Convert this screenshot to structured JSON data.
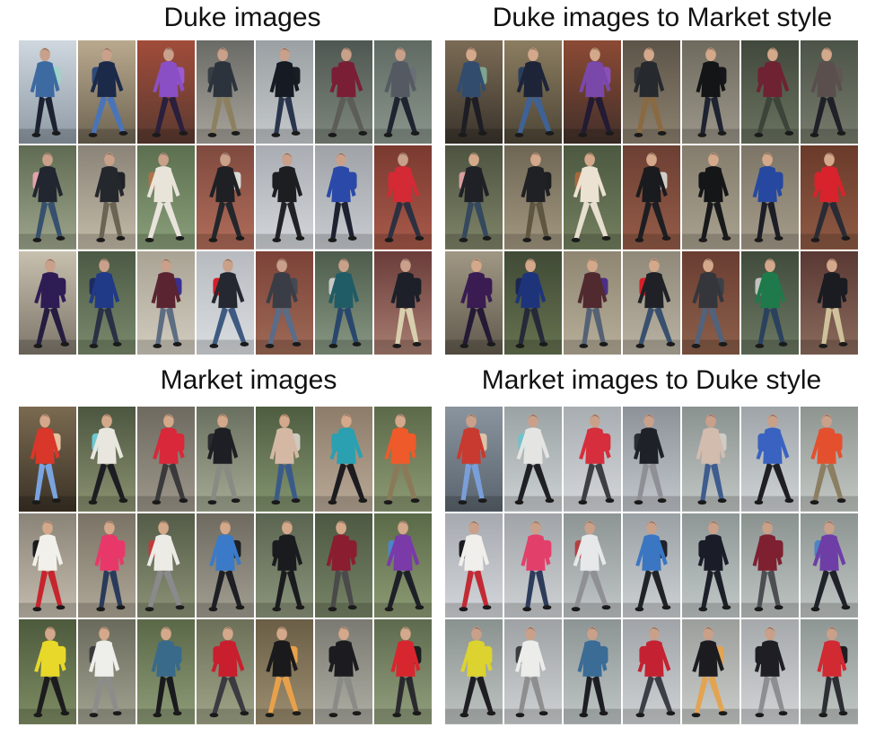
{
  "panels": [
    {
      "title": "Duke images",
      "tone": "duke",
      "rows": [
        [
          {
            "top": "#3d6aa0",
            "bottom": "#1d2233",
            "bag": "#9fd3c7",
            "bg1": "#cfd7df",
            "bg2": "#8e9aa5"
          },
          {
            "top": "#1c2a4a",
            "bottom": "#4a74b8",
            "bag": "#2d4b7a",
            "bg1": "#b9a98e",
            "bg2": "#6e6452"
          },
          {
            "top": "#8b4fc5",
            "bottom": "#2a1f3c",
            "bag": "#9a5ad2",
            "bg1": "#a24c3a",
            "bg2": "#5a3a30"
          },
          {
            "top": "#2c333c",
            "bottom": "#8c8060",
            "bag": "#3a3f46",
            "bg1": "#6a6a66",
            "bg2": "#a7a49b"
          },
          {
            "top": "#161a22",
            "bottom": "#29354d",
            "bag": "#1a1d24",
            "bg1": "#9aa0a3",
            "bg2": "#c5c9cb"
          },
          {
            "top": "#7a1e36",
            "bottom": "#5b5d56",
            "bag": "#7a1e36",
            "bg1": "#4e5751",
            "bg2": "#7f887d"
          },
          {
            "top": "#555a62",
            "bottom": "#1f2431",
            "bag": "#6a6f75",
            "bg1": "#5f6a62",
            "bg2": "#8a958c"
          }
        ],
        [
          {
            "top": "#222630",
            "bottom": "#36506e",
            "bag": "#e3a2ad",
            "bg1": "#5f6b52",
            "bg2": "#9ea68d"
          },
          {
            "top": "#24272c",
            "bottom": "#6a6454",
            "bag": "#202326",
            "bg1": "#8a8377",
            "bg2": "#c4bba8"
          },
          {
            "top": "#e9e4da",
            "bottom": "#e8e4dc",
            "bag": "#b0744a",
            "bg1": "#5c6f50",
            "bg2": "#8a9f7a"
          },
          {
            "top": "#1e2024",
            "bottom": "#23262b",
            "bag": "#d9d9d4",
            "bg1": "#7f4a3f",
            "bg2": "#b16d5a"
          },
          {
            "top": "#1c1e22",
            "bottom": "#202226",
            "bag": "#1c1e22",
            "bg1": "#a9adb3",
            "bg2": "#d3d6da"
          },
          {
            "top": "#2a49a8",
            "bottom": "#1d2130",
            "bag": "#2a49a8",
            "bg1": "#9fa3a8",
            "bg2": "#c8ccd1"
          },
          {
            "top": "#d42a35",
            "bottom": "#2d3040",
            "bag": "#d42a35",
            "bg1": "#7a3a30",
            "bg2": "#a85a4a"
          }
        ],
        [
          {
            "top": "#2e1d55",
            "bottom": "#251c40",
            "bag": "#2e1d55",
            "bg1": "#c7c0ae",
            "bg2": "#7d766a"
          },
          {
            "top": "#213a87",
            "bottom": "#2a3146",
            "bag": "#1c2c60",
            "bg1": "#4c5a45",
            "bg2": "#7a8a6c"
          },
          {
            "top": "#5a2430",
            "bottom": "#5d6d82",
            "bag": "#3a2f8f",
            "bg1": "#a9a394",
            "bg2": "#d1ccbf"
          },
          {
            "top": "#252830",
            "bottom": "#3e5a80",
            "bag": "#d21f2b",
            "bg1": "#b7bbc0",
            "bg2": "#dadde0"
          },
          {
            "top": "#3a3d45",
            "bottom": "#5a6c88",
            "bag": "#454a52",
            "bg1": "#7c4238",
            "bg2": "#9e6a56"
          },
          {
            "top": "#205c66",
            "bottom": "#29476d",
            "bag": "#c7c9c8",
            "bg1": "#4d5c4c",
            "bg2": "#889883"
          },
          {
            "top": "#1d2028",
            "bottom": "#d8cfae",
            "bag": "#1d2028",
            "bg1": "#6b3c3a",
            "bg2": "#a77d70"
          }
        ]
      ]
    },
    {
      "title": "Duke images to Market style",
      "tone": "market",
      "rows": [
        [
          {
            "top": "#324c6e",
            "bottom": "#1d1d24",
            "bag": "#7ea48f",
            "bg1": "#7b6b55",
            "bg2": "#3a342c"
          },
          {
            "top": "#1d2438",
            "bottom": "#3f6296",
            "bag": "#2a3f5e",
            "bg1": "#8b7d60",
            "bg2": "#4d4536"
          },
          {
            "top": "#7a48a9",
            "bottom": "#231a33",
            "bag": "#8a50ba",
            "bg1": "#8c4a34",
            "bg2": "#42302a"
          },
          {
            "top": "#26292e",
            "bottom": "#8a6a42",
            "bag": "#303338",
            "bg1": "#5c5448",
            "bg2": "#8d8270"
          },
          {
            "top": "#141517",
            "bottom": "#1e2330",
            "bag": "#16171a",
            "bg1": "#6e6a5e",
            "bg2": "#9c978a"
          },
          {
            "top": "#6e2232",
            "bottom": "#3c4439",
            "bag": "#6e2232",
            "bg1": "#41483c",
            "bg2": "#6a7360"
          },
          {
            "top": "#5a4f4d",
            "bottom": "#1f2028",
            "bag": "#5e5652",
            "bg1": "#4c5348",
            "bg2": "#767c6c"
          }
        ],
        [
          {
            "top": "#1f2126",
            "bottom": "#34485e",
            "bag": "#d99ea0",
            "bg1": "#4c5340",
            "bg2": "#7f8468"
          },
          {
            "top": "#1f2124",
            "bottom": "#5e5640",
            "bag": "#1d1f22",
            "bg1": "#6e6654",
            "bg2": "#a39880"
          },
          {
            "top": "#ebe2d2",
            "bottom": "#e6decf",
            "bag": "#a8683c",
            "bg1": "#4c5840",
            "bg2": "#74805f"
          },
          {
            "top": "#1a1b1e",
            "bottom": "#1d1e22",
            "bag": "#cfcfc8",
            "bg1": "#6c3f33",
            "bg2": "#955c48"
          },
          {
            "top": "#151618",
            "bottom": "#18191b",
            "bag": "#151618",
            "bg1": "#847c6c",
            "bg2": "#aaa290"
          },
          {
            "top": "#2648a0",
            "bottom": "#1c1d26",
            "bag": "#2648a0",
            "bg1": "#7c7466",
            "bg2": "#a59c8a"
          },
          {
            "top": "#d8232c",
            "bottom": "#2a2b34",
            "bag": "#d8232c",
            "bg1": "#6a3a2a",
            "bg2": "#8e5a44"
          }
        ],
        [
          {
            "top": "#3a1c52",
            "bottom": "#241a36",
            "bag": "#3a1c52",
            "bg1": "#a09784",
            "bg2": "#615a4d"
          },
          {
            "top": "#1e347a",
            "bottom": "#262a38",
            "bag": "#1a2752",
            "bg1": "#404a36",
            "bg2": "#66724f"
          },
          {
            "top": "#512a30",
            "bottom": "#556275",
            "bag": "#4a2f86",
            "bg1": "#8f8672",
            "bg2": "#b7ae99"
          },
          {
            "top": "#1f2126",
            "bottom": "#38506e",
            "bag": "#d81f27",
            "bg1": "#908979",
            "bg2": "#b9b2a2"
          },
          {
            "top": "#34363c",
            "bottom": "#52627a",
            "bag": "#3c4046",
            "bg1": "#6a3d32",
            "bg2": "#8c604a"
          },
          {
            "top": "#1e7a4a",
            "bottom": "#2b425e",
            "bag": "#c2c3bf",
            "bg1": "#404b3c",
            "bg2": "#6c7862"
          },
          {
            "top": "#1a1c22",
            "bottom": "#cfc19a",
            "bag": "#1a1c22",
            "bg1": "#5a3834",
            "bg2": "#8b6b5c"
          }
        ]
      ]
    },
    {
      "title": "Market images",
      "tone": "market",
      "rows": [
        [
          {
            "top": "#d8372a",
            "bottom": "#7aa4e0",
            "bag": "#e6c1a0",
            "bg1": "#7a6a50",
            "bg2": "#3b3226"
          },
          {
            "top": "#e8e6de",
            "bottom": "#1c1d22",
            "bag": "#6cc9d4",
            "bg1": "#4c5640",
            "bg2": "#8a9270"
          },
          {
            "top": "#d8283a",
            "bottom": "#3a3a3c",
            "bag": "#d8283a",
            "bg1": "#6e6a60",
            "bg2": "#9d978a"
          },
          {
            "top": "#1d1f24",
            "bottom": "#8a8a84",
            "bag": "#2a2c30",
            "bg1": "#6a7060",
            "bg2": "#a5aa94"
          },
          {
            "top": "#d4b8a4",
            "bottom": "#3a5a8a",
            "bag": "#cfcac0",
            "bg1": "#4e5c40",
            "bg2": "#839570"
          },
          {
            "top": "#2aa0b0",
            "bottom": "#1c1c20",
            "bag": "#2aa0b0",
            "bg1": "#8e7c6a",
            "bg2": "#b8a896"
          },
          {
            "top": "#ef5a2a",
            "bottom": "#8a7a5a",
            "bag": "#ef5a2a",
            "bg1": "#5c6a4a",
            "bg2": "#8d9a74"
          }
        ],
        [
          {
            "top": "#f2f0ea",
            "bottom": "#c8242e",
            "bag": "#1a1a1c",
            "bg1": "#8a8478",
            "bg2": "#c4bcae"
          },
          {
            "top": "#e8386a",
            "bottom": "#2a3a5a",
            "bag": "#e8386a",
            "bg1": "#7a7264",
            "bg2": "#b0a898"
          },
          {
            "top": "#ecebe6",
            "bottom": "#8a8a8c",
            "bag": "#c23a3a",
            "bg1": "#545c48",
            "bg2": "#8b9276"
          },
          {
            "top": "#3a7ac8",
            "bottom": "#1e1f24",
            "bag": "#1e1f24",
            "bg1": "#6e6a60",
            "bg2": "#a29e92"
          },
          {
            "top": "#1a1b1f",
            "bottom": "#1a1b1f",
            "bag": "#1a1b1f",
            "bg1": "#5a6450",
            "bg2": "#8c957c"
          },
          {
            "top": "#8a1e30",
            "bottom": "#4a4a4a",
            "bag": "#8a1e30",
            "bg1": "#4c5842",
            "bg2": "#788466"
          },
          {
            "top": "#7a3aa8",
            "bottom": "#1e2028",
            "bag": "#4a86c8",
            "bg1": "#5a6a48",
            "bg2": "#8d9b74"
          }
        ],
        [
          {
            "top": "#e8d82a",
            "bottom": "#1c1c1e",
            "bag": "#e8d82a",
            "bg1": "#4d5a3c",
            "bg2": "#7f8d64"
          },
          {
            "top": "#eeeeea",
            "bottom": "#8c8c8a",
            "bag": "#3a3a3c",
            "bg1": "#6a6a5c",
            "bg2": "#a3a392"
          },
          {
            "top": "#3a6a8a",
            "bottom": "#1a1a1e",
            "bag": "#3a6a8a",
            "bg1": "#5a6848",
            "bg2": "#8e9c78"
          },
          {
            "top": "#c81e2e",
            "bottom": "#3a3a40",
            "bag": "#c81e2e",
            "bg1": "#6c7058",
            "bg2": "#a0a488"
          },
          {
            "top": "#1a1a1c",
            "bottom": "#e8a04a",
            "bag": "#e8a04a",
            "bg1": "#6a5e46",
            "bg2": "#9c8e70"
          },
          {
            "top": "#1c1c20",
            "bottom": "#8a8a86",
            "bag": "#1c1c20",
            "bg1": "#7a7a72",
            "bg2": "#aeaea4"
          },
          {
            "top": "#d8262e",
            "bottom": "#2a2a2e",
            "bag": "#1c1c1e",
            "bg1": "#5e6a4e",
            "bg2": "#93a07e"
          }
        ]
      ]
    },
    {
      "title": "Market images to Duke style",
      "tone": "duke",
      "rows": [
        [
          {
            "top": "#c83a30",
            "bottom": "#7a9ed8",
            "bag": "#dcc2aa",
            "bg1": "#8a949e",
            "bg2": "#5a646e"
          },
          {
            "top": "#e4e4e2",
            "bottom": "#1e2026",
            "bag": "#70c2cc",
            "bg1": "#9aa2a4",
            "bg2": "#cdd2d4"
          },
          {
            "top": "#d62e3c",
            "bottom": "#3c3e44",
            "bag": "#d62e3c",
            "bg1": "#a8adb2",
            "bg2": "#d4d7da"
          },
          {
            "top": "#1e2228",
            "bottom": "#8e9096",
            "bag": "#2a2e34",
            "bg1": "#8c9298",
            "bg2": "#c2c7cc"
          },
          {
            "top": "#d2bcae",
            "bottom": "#3e5c8e",
            "bag": "#cfccc6",
            "bg1": "#8a9290",
            "bg2": "#c1c7c5"
          },
          {
            "top": "#3a62c0",
            "bottom": "#1e1e24",
            "bag": "#3a62c0",
            "bg1": "#9ea4a8",
            "bg2": "#cfd3d6"
          },
          {
            "top": "#e4502e",
            "bottom": "#8c7e62",
            "bag": "#e4502e",
            "bg1": "#8e9490",
            "bg2": "#c3c8c4"
          }
        ],
        [
          {
            "top": "#f0efec",
            "bottom": "#c22a34",
            "bag": "#1c1c20",
            "bg1": "#a6aab0",
            "bg2": "#d3d6da"
          },
          {
            "top": "#e2406a",
            "bottom": "#2e3c5c",
            "bag": "#e2406a",
            "bg1": "#a0a4a8",
            "bg2": "#cfd2d4"
          },
          {
            "top": "#e6e8ea",
            "bottom": "#8e9094",
            "bag": "#b44040",
            "bg1": "#8d9494",
            "bg2": "#c1c6c6"
          },
          {
            "top": "#3a76c2",
            "bottom": "#202228",
            "bag": "#202228",
            "bg1": "#9aa0a4",
            "bg2": "#cdd1d4"
          },
          {
            "top": "#1a1d28",
            "bottom": "#1c1f28",
            "bag": "#1a1d28",
            "bg1": "#8e9696",
            "bg2": "#c2c8c8"
          },
          {
            "top": "#7e2030",
            "bottom": "#4c4e52",
            "bag": "#7e2030",
            "bg1": "#8a9290",
            "bg2": "#bfc5c3"
          },
          {
            "top": "#6e3ea6",
            "bottom": "#20222a",
            "bag": "#4c84c4",
            "bg1": "#8c9492",
            "bg2": "#c0c6c4"
          }
        ],
        [
          {
            "top": "#dcd230",
            "bottom": "#1e1e22",
            "bag": "#dcd230",
            "bg1": "#8a9290",
            "bg2": "#bec4c2"
          },
          {
            "top": "#ececea",
            "bottom": "#8e8e8e",
            "bag": "#3c3c40",
            "bg1": "#9ea2a4",
            "bg2": "#cfd2d4"
          },
          {
            "top": "#3a6c96",
            "bottom": "#1c1e24",
            "bag": "#3a6c96",
            "bg1": "#8c9494",
            "bg2": "#c0c6c6"
          },
          {
            "top": "#c42232",
            "bottom": "#3c3e46",
            "bag": "#c42232",
            "bg1": "#a0a4a8",
            "bg2": "#cfd2d4"
          },
          {
            "top": "#1c1c20",
            "bottom": "#e2a452",
            "bag": "#e2a452",
            "bg1": "#9c9e9c",
            "bg2": "#cbcdcb"
          },
          {
            "top": "#1e1e24",
            "bottom": "#8c8e90",
            "bag": "#1e1e24",
            "bg1": "#a6a9ac",
            "bg2": "#d2d4d6"
          },
          {
            "top": "#d22a32",
            "bottom": "#2c2e34",
            "bag": "#1e1e22",
            "bg1": "#8e9694",
            "bg2": "#c2c8c6"
          }
        ]
      ]
    }
  ]
}
